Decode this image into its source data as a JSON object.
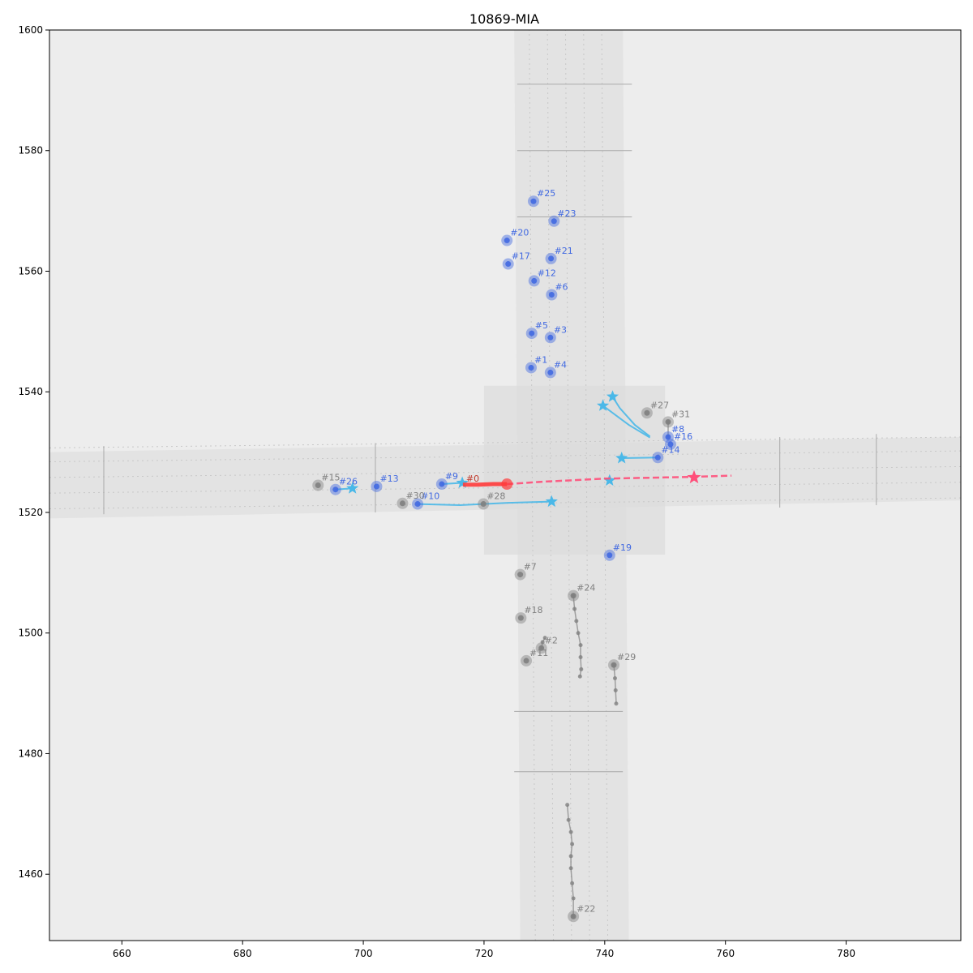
{
  "chart_data": {
    "type": "scatter",
    "title": "10869-MIA",
    "xlabel": "",
    "ylabel": "",
    "xlim": [
      648,
      799
    ],
    "ylim": [
      1449,
      1600
    ],
    "xticks": [
      660,
      680,
      700,
      720,
      740,
      760,
      780
    ],
    "yticks": [
      1460,
      1480,
      1500,
      1520,
      1540,
      1560,
      1580,
      1600
    ],
    "grid": false,
    "colors": {
      "background": "#ededed",
      "road": "#dcdcdc",
      "ego": "#ff3b3b",
      "ego_future": "#ff4f7a",
      "interactive": "#4169e1",
      "predicted": "#4ab8e8",
      "static": "#808080"
    },
    "ego": {
      "label": "#0",
      "history": [
        [
          716.5,
          1524.6
        ],
        [
          719,
          1524.6
        ],
        [
          721.5,
          1524.7
        ],
        [
          723.8,
          1524.7
        ]
      ],
      "future": [
        [
          723.8,
          1524.7
        ],
        [
          730,
          1525.1
        ],
        [
          740,
          1525.6
        ],
        [
          750,
          1525.8
        ],
        [
          754.8,
          1525.9
        ],
        [
          761,
          1526.1
        ]
      ],
      "goal": [
        754.8,
        1525.8
      ]
    },
    "agents": [
      {
        "label": "#1",
        "pos": [
          727.8,
          1544.0
        ],
        "category": "interactive"
      },
      {
        "label": "#3",
        "pos": [
          731.0,
          1549.0
        ],
        "category": "interactive"
      },
      {
        "label": "#4",
        "pos": [
          731.0,
          1543.2
        ],
        "category": "interactive"
      },
      {
        "label": "#5",
        "pos": [
          727.9,
          1549.7
        ],
        "category": "interactive"
      },
      {
        "label": "#6",
        "pos": [
          731.2,
          1556.1
        ],
        "category": "interactive"
      },
      {
        "label": "#8",
        "pos": [
          750.5,
          1532.5
        ],
        "category": "interactive"
      },
      {
        "label": "#9",
        "pos": [
          713.0,
          1524.7
        ],
        "category": "interactive"
      },
      {
        "label": "#10",
        "pos": [
          709.0,
          1521.4
        ],
        "category": "interactive"
      },
      {
        "label": "#12",
        "pos": [
          728.3,
          1558.4
        ],
        "category": "interactive"
      },
      {
        "label": "#13",
        "pos": [
          702.2,
          1524.3
        ],
        "category": "interactive"
      },
      {
        "label": "#14",
        "pos": [
          748.8,
          1529.1
        ],
        "category": "interactive"
      },
      {
        "label": "#16",
        "pos": [
          750.9,
          1531.3
        ],
        "category": "interactive"
      },
      {
        "label": "#17",
        "pos": [
          724.0,
          1561.2
        ],
        "category": "interactive"
      },
      {
        "label": "#19",
        "pos": [
          740.8,
          1512.9
        ],
        "category": "interactive"
      },
      {
        "label": "#20",
        "pos": [
          723.8,
          1565.1
        ],
        "category": "interactive"
      },
      {
        "label": "#21",
        "pos": [
          731.1,
          1562.1
        ],
        "category": "interactive"
      },
      {
        "label": "#23",
        "pos": [
          731.6,
          1568.3
        ],
        "category": "interactive"
      },
      {
        "label": "#25",
        "pos": [
          728.2,
          1571.6
        ],
        "category": "interactive"
      },
      {
        "label": "#26",
        "pos": [
          695.4,
          1523.8
        ],
        "category": "interactive"
      },
      {
        "label": "#2",
        "pos": [
          729.5,
          1497.5
        ],
        "category": "static"
      },
      {
        "label": "#7",
        "pos": [
          726.0,
          1509.7
        ],
        "category": "static"
      },
      {
        "label": "#11",
        "pos": [
          727.0,
          1495.4
        ],
        "category": "static"
      },
      {
        "label": "#18",
        "pos": [
          726.1,
          1502.5
        ],
        "category": "static"
      },
      {
        "label": "#22",
        "pos": [
          734.8,
          1453.0
        ],
        "category": "static"
      },
      {
        "label": "#24",
        "pos": [
          734.8,
          1506.2
        ],
        "category": "static"
      },
      {
        "label": "#27",
        "pos": [
          747.0,
          1536.5
        ],
        "category": "static"
      },
      {
        "label": "#28",
        "pos": [
          719.9,
          1521.4
        ],
        "category": "static"
      },
      {
        "label": "#29",
        "pos": [
          741.5,
          1494.7
        ],
        "category": "static"
      },
      {
        "label": "#30",
        "pos": [
          706.5,
          1521.5
        ],
        "category": "static"
      },
      {
        "label": "#31",
        "pos": [
          750.5,
          1535.0
        ],
        "category": "static"
      },
      {
        "label": "#15",
        "pos": [
          692.5,
          1524.5
        ],
        "category": "static"
      }
    ],
    "predictions": [
      {
        "path": [
          [
            709,
            1521.4
          ],
          [
            716,
            1521.2
          ],
          [
            724,
            1521.6
          ],
          [
            731.2,
            1521.8
          ]
        ],
        "star": [
          731.2,
          1521.8
        ]
      },
      {
        "path": [
          [
            695.4,
            1523.8
          ],
          [
            698.2,
            1524.0
          ]
        ],
        "star": [
          698.2,
          1524.0
        ]
      },
      {
        "path": [
          [
            713,
            1524.7
          ],
          [
            716.4,
            1524.9
          ]
        ],
        "star": [
          716.4,
          1524.9
        ]
      },
      {
        "path": [
          [
            747.5,
            1532.6
          ],
          [
            745,
            1534.5
          ],
          [
            742.5,
            1537.3
          ],
          [
            741.3,
            1539.2
          ]
        ],
        "star": [
          741.3,
          1539.2
        ]
      },
      {
        "path": [
          [
            747.5,
            1532.4
          ],
          [
            744,
            1534.5
          ],
          [
            739.7,
            1537.7
          ]
        ],
        "star": [
          739.7,
          1537.7
        ]
      },
      {
        "path": [
          [
            748.8,
            1529.1
          ],
          [
            742.8,
            1529.0
          ]
        ],
        "star": [
          742.8,
          1529.0
        ]
      },
      {
        "path": [
          [
            740.8,
            1525.6
          ]
        ],
        "star": [
          740.8,
          1525.3
        ]
      }
    ],
    "static_tracks": [
      {
        "path": [
          [
            734.8,
            1506.2
          ],
          [
            735.0,
            1504
          ],
          [
            735.3,
            1502
          ],
          [
            735.6,
            1500
          ],
          [
            736.0,
            1498
          ],
          [
            736.0,
            1496
          ],
          [
            736.1,
            1494
          ],
          [
            735.9,
            1492.8
          ]
        ]
      },
      {
        "path": [
          [
            734.8,
            1453.0
          ],
          [
            734.8,
            1456
          ],
          [
            734.6,
            1458.5
          ],
          [
            734.4,
            1461
          ],
          [
            734.4,
            1463
          ],
          [
            734.6,
            1465
          ],
          [
            734.4,
            1467
          ],
          [
            734.0,
            1469
          ],
          [
            733.8,
            1471.5
          ]
        ]
      },
      {
        "path": [
          [
            741.5,
            1494.7
          ],
          [
            741.7,
            1492.5
          ],
          [
            741.8,
            1490.5
          ],
          [
            741.9,
            1488.3
          ]
        ]
      },
      {
        "path": [
          [
            729.5,
            1497.5
          ],
          [
            729.7,
            1498.5
          ],
          [
            730.1,
            1499.2
          ]
        ]
      },
      {
        "path": [
          [
            750.5,
            1532.5
          ],
          [
            750.5,
            1535.0
          ]
        ]
      }
    ]
  }
}
